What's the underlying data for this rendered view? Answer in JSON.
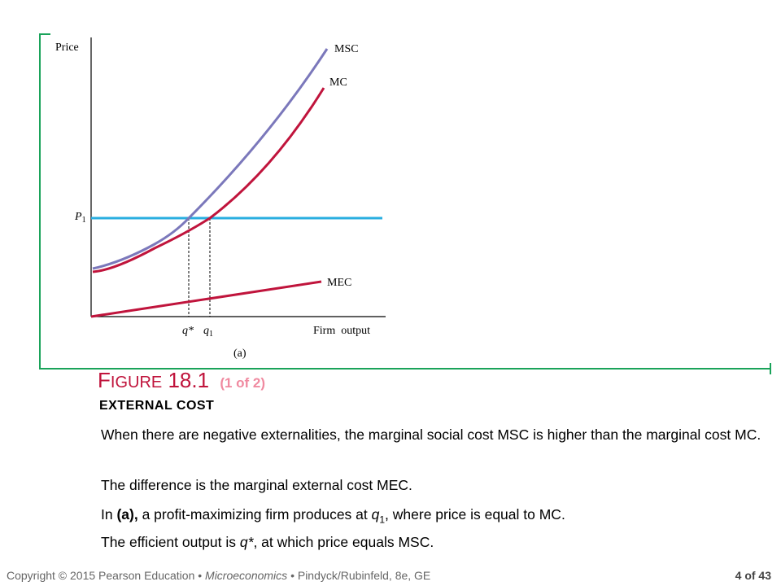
{
  "diagram": {
    "y_axis_label": "Price",
    "x_axis_label": "Firm  output",
    "panel_label": "(a)",
    "curves": {
      "msc": "MSC",
      "mc": "MC",
      "mec": "MEC"
    },
    "price_label": {
      "main": "P",
      "sub": "1"
    },
    "qstar_label": "q*",
    "q1_label": {
      "main": "q",
      "sub": "1"
    },
    "colors": {
      "msc": "#7b78bb",
      "mc": "#c0143c",
      "mec": "#c0143c",
      "price_line": "#29aee0",
      "axis": "#000000",
      "frame": "#1aa35a"
    }
  },
  "figure": {
    "title_initial": "F",
    "title_rest": "IGURE",
    "title_number": "18.1",
    "title_part": "(1 of 2)",
    "subtitle": "EXTERNAL COST"
  },
  "text": {
    "p1": "When there are negative externalities, the marginal social cost MSC is higher than the marginal cost MC.",
    "p2": "The difference is the marginal external cost MEC.",
    "p3": {
      "a": "In ",
      "b": "(a),",
      "c": " a profit-maximizing firm produces at ",
      "q": "q",
      "sub": "1",
      "d": ", where price is equal to MC."
    },
    "p4": {
      "a": "The efficient output is ",
      "q": "q*",
      "b": ", at which price equals MSC."
    }
  },
  "footer": {
    "copyright": "Copyright © 2015  Pearson Education •",
    "book": "Microeconomics",
    "authors": "•  Pindyck/Rubinfeld, 8e, GE",
    "page": "4 of 43"
  }
}
